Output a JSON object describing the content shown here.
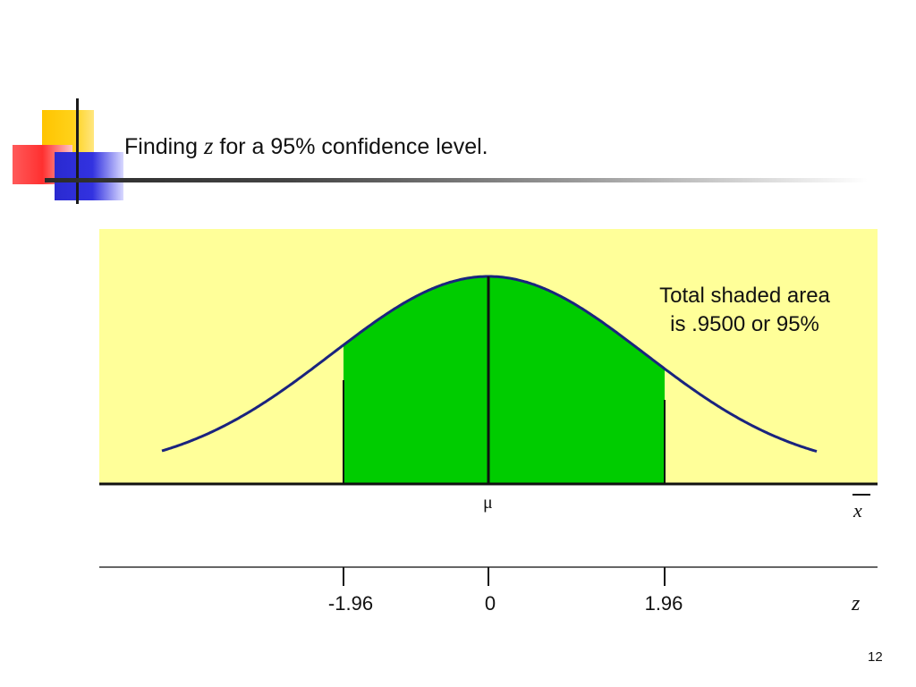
{
  "slide": {
    "title_pre": "Finding ",
    "title_var": "z",
    "title_post": " for a 95% confidence level.",
    "page_number": "12"
  },
  "diagram": {
    "annotation_line1": "Total shaded area",
    "annotation_line2": "is .9500 or 95%",
    "mean_symbol": "μ",
    "upper_axis_label": "x",
    "lower_axis_label": "z",
    "ticks": [
      "-1.96",
      "0",
      "1.96"
    ],
    "shaded_area": 0.95,
    "colors": {
      "background": "#ffff99",
      "shaded": "#00cc00",
      "curve": "#1a237e"
    }
  }
}
